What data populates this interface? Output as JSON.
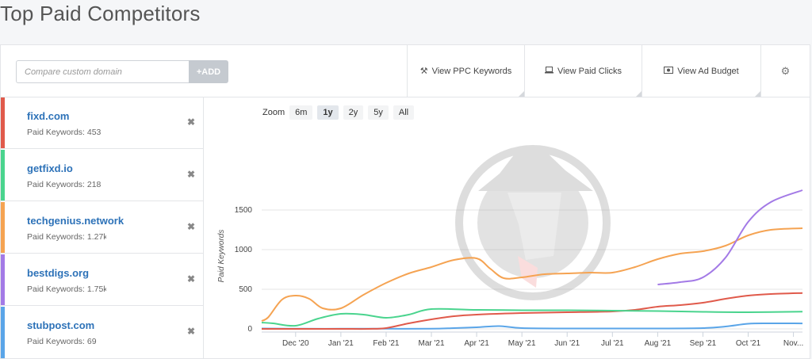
{
  "page": {
    "title": "Top Paid Competitors"
  },
  "toolbar": {
    "compare_placeholder": "Compare custom domain",
    "add_label": "+ADD",
    "buttons": [
      {
        "label": "View PPC Keywords",
        "icon": "key-icon"
      },
      {
        "label": "View Paid Clicks",
        "icon": "laptop-icon"
      },
      {
        "label": "View Ad Budget",
        "icon": "money-icon"
      }
    ],
    "settings_icon": "gear-icon"
  },
  "competitors": [
    {
      "name": "fixd.com",
      "keywords_text": "Paid Keywords: 453",
      "color": "#e05a4b"
    },
    {
      "name": "getfixd.io",
      "keywords_text": "Paid Keywords: 218",
      "color": "#4ad48e"
    },
    {
      "name": "techgenius.network",
      "keywords_text": "Paid Keywords: 1.27k",
      "color": "#f5a352"
    },
    {
      "name": "bestdigs.org",
      "keywords_text": "Paid Keywords: 1.75k",
      "color": "#a37ae6"
    },
    {
      "name": "stubpost.com",
      "keywords_text": "Paid Keywords: 69",
      "color": "#5aa5e8"
    }
  ],
  "zoom": {
    "label": "Zoom",
    "options": [
      "6m",
      "1y",
      "2y",
      "5y",
      "All"
    ],
    "selected": "1y"
  },
  "chart_data": {
    "type": "line",
    "ylabel": "Paid Keywords",
    "ylim": [
      0,
      1800
    ],
    "yticks": [
      0,
      500,
      1000,
      1500
    ],
    "x_ticks": [
      "Dec '20",
      "Jan '21",
      "Feb '21",
      "Mar '21",
      "Apr '21",
      "May '21",
      "Jun '21",
      "Jul '21",
      "Aug '21",
      "Sep '21",
      "Oct '21",
      "Nov..."
    ],
    "x_range": [
      -0.75,
      11.2
    ],
    "grid": true,
    "series": [
      {
        "name": "stubpost.com",
        "color": "#5aa5e8",
        "x": [
          -0.8,
          0,
          1,
          2,
          3,
          3.5,
          4,
          4.5,
          5,
          6,
          7,
          8,
          9,
          9.5,
          10,
          10.5,
          11.2
        ],
        "values": [
          5,
          2,
          2,
          2,
          2,
          10,
          20,
          35,
          10,
          5,
          5,
          5,
          10,
          30,
          65,
          70,
          69
        ]
      },
      {
        "name": "fixd.com",
        "color": "#e05a4b",
        "x": [
          -0.8,
          0,
          1,
          1.6,
          2,
          2.5,
          3,
          3.5,
          4,
          5,
          6,
          7,
          7.5,
          8,
          8.5,
          9,
          9.5,
          10,
          10.5,
          11.2
        ],
        "values": [
          0,
          0,
          0,
          0,
          10,
          70,
          120,
          160,
          180,
          200,
          210,
          220,
          240,
          280,
          300,
          330,
          380,
          420,
          440,
          453
        ]
      },
      {
        "name": "getfixd.io",
        "color": "#4ad48e",
        "x": [
          -0.8,
          -0.5,
          0,
          0.5,
          1,
          1.5,
          2,
          2.5,
          3,
          4,
          5,
          6,
          7,
          8,
          9,
          10,
          11.2
        ],
        "values": [
          80,
          70,
          40,
          130,
          190,
          180,
          140,
          180,
          250,
          240,
          235,
          235,
          230,
          225,
          215,
          210,
          218
        ]
      },
      {
        "name": "techgenius.network",
        "color": "#f5a352",
        "x": [
          -0.8,
          -0.6,
          -0.3,
          0,
          0.3,
          0.6,
          1,
          1.5,
          2,
          2.5,
          3,
          3.5,
          4,
          4.3,
          4.6,
          5,
          5.5,
          6,
          6.5,
          7,
          7.5,
          8,
          8.5,
          9,
          9.5,
          10,
          10.5,
          11.2
        ],
        "values": [
          100,
          150,
          370,
          420,
          380,
          260,
          260,
          430,
          580,
          700,
          780,
          870,
          890,
          760,
          640,
          650,
          690,
          700,
          710,
          710,
          780,
          880,
          950,
          980,
          1050,
          1180,
          1250,
          1270
        ]
      },
      {
        "name": "bestdigs.org",
        "color": "#a37ae6",
        "x": [
          8,
          8.5,
          9,
          9.5,
          10,
          10.5,
          11.2
        ],
        "values": [
          560,
          590,
          650,
          900,
          1350,
          1600,
          1750
        ]
      }
    ]
  }
}
